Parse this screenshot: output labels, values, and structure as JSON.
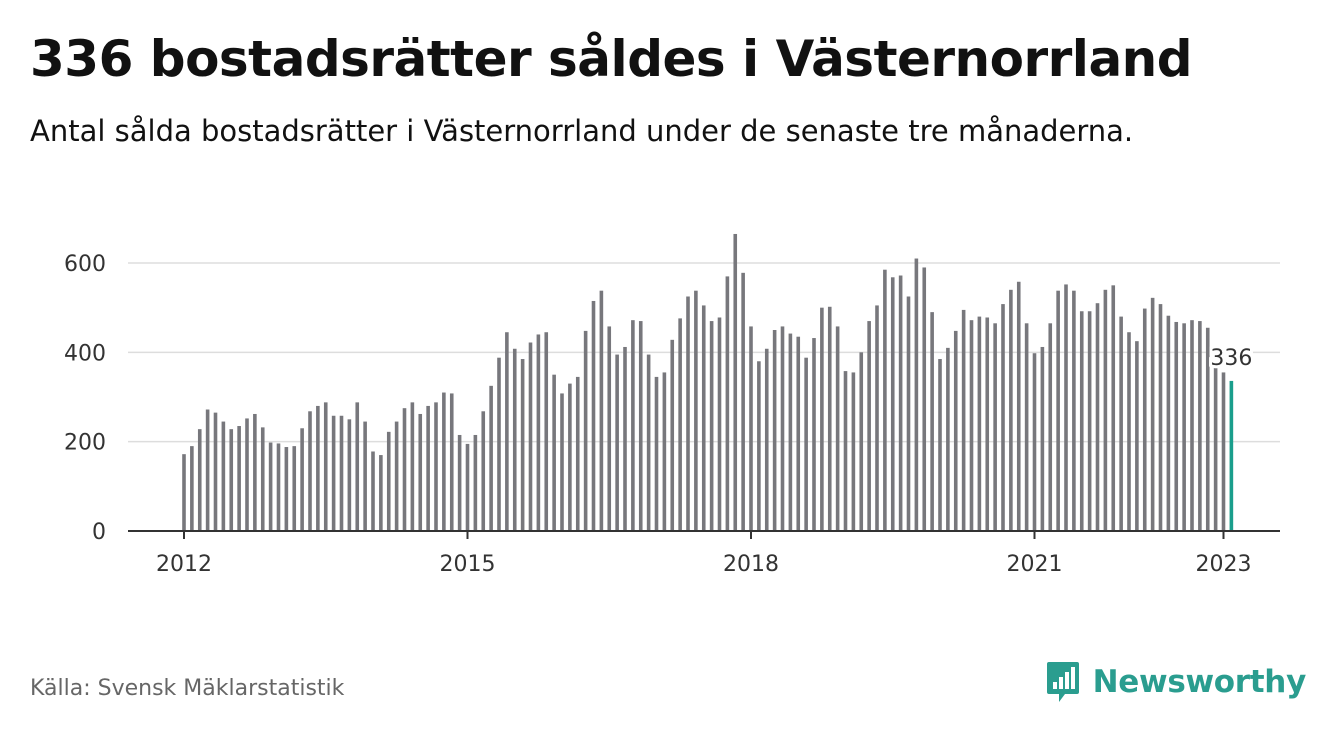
{
  "title": "336 bostadsrätter såldes i Västernorrland",
  "subtitle": "Antal sålda bostadsrätter i Västernorrland under de senaste tre månaderna.",
  "source": "Källa: Svensk Mäklarstatistik",
  "brand": {
    "name": "Newsworthy",
    "icon": "newsworthy-logo-icon",
    "color": "#2a9d8f"
  },
  "colors": {
    "bar": "#77777c",
    "highlight": "#1a9e8c",
    "grid": "#dddddd",
    "axis": "#333333"
  },
  "chart_data": {
    "type": "bar",
    "title": "336 bostadsrätter såldes i Västernorrland",
    "subtitle": "Antal sålda bostadsrätter i Västernorrland under de senaste tre månaderna.",
    "xlabel": "",
    "ylabel": "",
    "x_start": "2012-01",
    "x_end": "2023-01",
    "ylim": [
      0,
      700
    ],
    "y_ticks": [
      0,
      200,
      400,
      600
    ],
    "x_tick_labels": [
      "2012",
      "2015",
      "2018",
      "2021",
      "2023"
    ],
    "grid": true,
    "highlight_label": "336",
    "values": [
      172,
      190,
      228,
      272,
      265,
      245,
      228,
      235,
      252,
      262,
      232,
      198,
      196,
      188,
      190,
      230,
      268,
      280,
      288,
      258,
      258,
      250,
      288,
      245,
      178,
      170,
      222,
      245,
      275,
      288,
      262,
      280,
      288,
      310,
      308,
      215,
      195,
      215,
      268,
      325,
      388,
      445,
      408,
      385,
      422,
      440,
      445,
      350,
      308,
      330,
      345,
      448,
      515,
      538,
      458,
      395,
      412,
      472,
      470,
      395,
      345,
      355,
      428,
      476,
      525,
      538,
      505,
      470,
      478,
      570,
      665,
      578,
      458,
      380,
      408,
      450,
      458,
      442,
      435,
      388,
      432,
      500,
      502,
      458,
      358,
      355,
      400,
      470,
      505,
      585,
      568,
      572,
      525,
      610,
      590,
      490,
      385,
      410,
      448,
      495,
      472,
      480,
      478,
      465,
      508,
      540,
      558,
      465,
      398,
      412,
      465,
      538,
      552,
      538,
      492,
      492,
      510,
      540,
      550,
      480,
      445,
      425,
      498,
      522,
      508,
      482,
      468,
      465,
      472,
      470,
      455,
      378,
      355,
      336
    ]
  }
}
